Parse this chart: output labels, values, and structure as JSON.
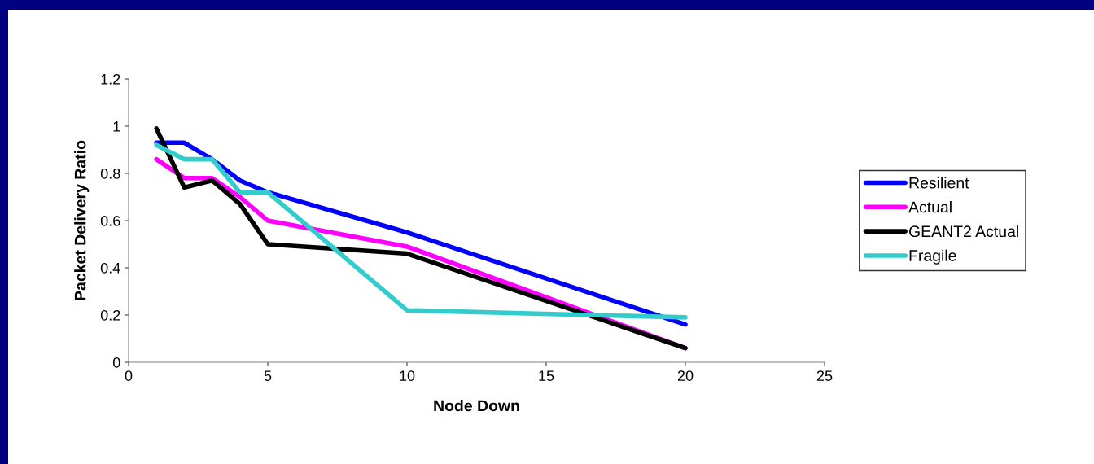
{
  "chart_data": {
    "type": "line",
    "xlabel": "Node Down",
    "ylabel": "Packet Delivery Ratio",
    "x": [
      1,
      2,
      3,
      4,
      5,
      10,
      20
    ],
    "series": [
      {
        "name": "Resilient",
        "color": "#0000ff",
        "values": [
          0.93,
          0.93,
          0.86,
          0.77,
          0.72,
          0.55,
          0.16
        ]
      },
      {
        "name": "Actual",
        "color": "#ff00ff",
        "values": [
          0.86,
          0.78,
          0.78,
          0.7,
          0.6,
          0.49,
          0.06
        ]
      },
      {
        "name": "GEANT2 Actual",
        "color": "#000000",
        "values": [
          0.99,
          0.74,
          0.77,
          0.67,
          0.5,
          0.46,
          0.06
        ]
      },
      {
        "name": "Fragile",
        "color": "#33cccc",
        "values": [
          0.92,
          0.86,
          0.86,
          0.72,
          0.72,
          0.22,
          0.19
        ]
      }
    ],
    "xlim": [
      0,
      25
    ],
    "xticks": [
      0,
      5,
      10,
      15,
      20,
      25
    ],
    "ylim": [
      0,
      1.2
    ],
    "yticks": [
      0,
      0.2,
      0.4,
      0.6,
      0.8,
      1,
      1.2
    ],
    "grid": false,
    "legend": "right",
    "marker": "none",
    "line_style": "solid"
  }
}
